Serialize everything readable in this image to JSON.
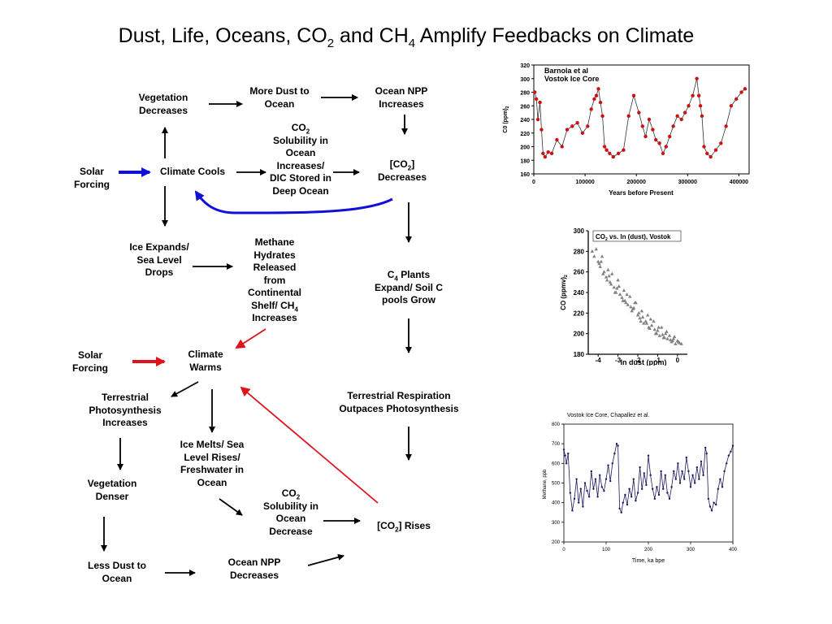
{
  "title": {
    "pre": "Dust, Life, Oceans, CO",
    "sub1": "2",
    "mid": " and CH",
    "sub2": "4",
    "post": " Amplify Feedbacks on Climate"
  },
  "nodes": {
    "veg_decreases": "Vegetation Decreases",
    "more_dust": "More Dust to Ocean",
    "ocean_npp_inc": "Ocean NPP Increases",
    "solar1": "Solar Forcing",
    "climate_cools": "Climate Cools",
    "co2_sol_a": "CO",
    "co2_sol_sub": "2",
    "co2_sol_b": "Solubility in Ocean Increases/ DIC Stored in Deep Ocean",
    "co2dec_a": "[CO",
    "co2dec_sub": "2",
    "co2dec_b": "] Decreases",
    "ice_expands": "Ice Expands/ Sea Level Drops",
    "methane_a": "Methane Hydrates Released from Continental Shelf/ CH",
    "methane_sub": "4",
    "methane_b": "Increases",
    "c4_a": "C",
    "c4_sub": "4",
    "c4_b": "Plants Expand/ Soil C pools Grow",
    "solar2": "Solar Forcing",
    "climate_warms": "Climate Warms",
    "terr_photo": "Terrestrial Photosynthesis Increases",
    "terr_resp": "Terrestrial Respiration Outpaces Photosynthesis",
    "ice_melts": "Ice Melts/ Sea Level Rises/ Freshwater in Ocean",
    "veg_denser": "Vegetation Denser",
    "co2sol2_a": "CO",
    "co2sol2_sub": "2",
    "co2sol2_b": "Solubility in Ocean Decrease",
    "co2rises_a": "[CO",
    "co2rises_sub": "2",
    "co2rises_b": "] Rises",
    "less_dust": "Less Dust to Ocean",
    "ocean_npp_dec": "Ocean NPP Decreases"
  },
  "colors": {
    "blue_arrow": "#1010d8",
    "red_arrow": "#e0121c",
    "chart1_marker": "#cc1111",
    "chart2_marker": "#808080",
    "chart3_line": "#1a1a60"
  },
  "chart_data": [
    {
      "type": "line",
      "legend": [
        "Barnola et al",
        "Vostok Ice Core"
      ],
      "xlabel": "Years before Present",
      "ylabel": "C0 (ppm)",
      "ylabel_sub": "2",
      "xlim": [
        0,
        420000
      ],
      "ylim": [
        160,
        320
      ],
      "xticks": [
        0,
        100000,
        200000,
        300000,
        400000
      ],
      "yticks": [
        160,
        180,
        200,
        220,
        240,
        260,
        280,
        300,
        320
      ],
      "x": [
        2000,
        5000,
        8000,
        12000,
        15000,
        18000,
        22000,
        28000,
        35000,
        45000,
        55000,
        65000,
        75000,
        85000,
        95000,
        105000,
        112000,
        118000,
        122000,
        126000,
        130000,
        134000,
        138000,
        142000,
        148000,
        155000,
        165000,
        175000,
        185000,
        195000,
        205000,
        212000,
        218000,
        225000,
        232000,
        238000,
        245000,
        252000,
        258000,
        265000,
        272000,
        280000,
        288000,
        295000,
        302000,
        310000,
        318000,
        322000,
        325000,
        328000,
        332000,
        338000,
        345000,
        355000,
        365000,
        375000,
        385000,
        395000,
        405000,
        412000
      ],
      "y": [
        280,
        270,
        240,
        265,
        225,
        190,
        185,
        192,
        190,
        210,
        200,
        225,
        230,
        235,
        220,
        230,
        255,
        270,
        275,
        285,
        265,
        245,
        200,
        195,
        190,
        185,
        190,
        195,
        245,
        275,
        250,
        230,
        215,
        240,
        225,
        210,
        205,
        190,
        200,
        215,
        230,
        245,
        240,
        250,
        260,
        275,
        300,
        275,
        260,
        245,
        200,
        190,
        185,
        195,
        205,
        230,
        260,
        270,
        280,
        285
      ]
    },
    {
      "type": "scatter",
      "title": "CO2 vs. ln (dust), Vostok",
      "title_prefix": "CO",
      "title_sub": "2",
      "title_suffix": " vs. ln (dust), Vostok",
      "xlabel": "ln dust (ppm)",
      "ylabel": "CO (ppmv)",
      "ylabel_sub": "2",
      "xlim": [
        -4.5,
        0.5
      ],
      "ylim": [
        180,
        300
      ],
      "xticks": [
        -4,
        -3,
        -2,
        -1,
        0
      ],
      "yticks": [
        180,
        200,
        220,
        240,
        260,
        280,
        300
      ],
      "x": [
        -4.3,
        -4.1,
        -4.0,
        -3.9,
        -3.8,
        -3.7,
        -3.6,
        -3.5,
        -3.4,
        -3.3,
        -3.2,
        -3.1,
        -3.0,
        -2.9,
        -2.8,
        -2.7,
        -2.6,
        -2.5,
        -2.4,
        -2.3,
        -2.2,
        -2.1,
        -2.0,
        -1.9,
        -1.8,
        -1.7,
        -1.6,
        -1.5,
        -1.4,
        -1.3,
        -1.2,
        -1.1,
        -1.0,
        -0.9,
        -0.8,
        -0.7,
        -0.6,
        -0.5,
        -0.4,
        -0.3,
        -0.2,
        -0.1,
        0.0,
        0.1,
        0.2,
        -4.2,
        -3.95,
        -3.75,
        -3.55,
        -3.35,
        -3.15,
        -2.95,
        -2.75,
        -2.55,
        -2.35,
        -2.15,
        -1.95,
        -1.75,
        -1.55,
        -1.35,
        -1.15,
        -0.95,
        -0.75,
        -0.55,
        -0.35,
        -0.15,
        0.05,
        -3.85,
        -3.45,
        -3.05,
        -2.65,
        -2.25,
        -1.85,
        -1.45,
        -1.05,
        -0.65,
        -0.25
      ],
      "y": [
        280,
        282,
        270,
        265,
        275,
        260,
        255,
        262,
        250,
        258,
        245,
        240,
        252,
        238,
        235,
        242,
        230,
        228,
        236,
        222,
        225,
        230,
        218,
        215,
        222,
        210,
        212,
        218,
        205,
        208,
        212,
        200,
        203,
        198,
        206,
        196,
        200,
        195,
        198,
        192,
        195,
        190,
        193,
        191,
        190,
        275,
        268,
        258,
        252,
        248,
        240,
        246,
        232,
        238,
        226,
        230,
        220,
        216,
        210,
        214,
        204,
        206,
        199,
        202,
        194,
        197,
        192,
        270,
        256,
        244,
        232,
        224,
        212,
        206,
        200,
        196,
        193
      ]
    },
    {
      "type": "line",
      "title": "Vostok Ice Core, Chapallez et al.",
      "xlabel": "Time, ka bpe",
      "ylabel": "Methane, ppb",
      "xlim": [
        0,
        400
      ],
      "ylim": [
        200,
        800
      ],
      "xticks": [
        0,
        100,
        200,
        300,
        400
      ],
      "yticks": [
        200,
        300,
        400,
        500,
        600,
        700,
        800
      ],
      "x": [
        0,
        3,
        6,
        10,
        15,
        20,
        25,
        30,
        35,
        40,
        45,
        50,
        55,
        60,
        65,
        70,
        75,
        80,
        85,
        90,
        95,
        100,
        105,
        110,
        115,
        120,
        125,
        128,
        132,
        136,
        140,
        145,
        150,
        155,
        160,
        165,
        170,
        175,
        180,
        185,
        190,
        195,
        200,
        205,
        210,
        215,
        220,
        225,
        230,
        235,
        240,
        245,
        250,
        255,
        260,
        265,
        270,
        275,
        280,
        285,
        290,
        295,
        300,
        305,
        310,
        315,
        320,
        325,
        330,
        335,
        338,
        342,
        346,
        350,
        355,
        360,
        365,
        370,
        375,
        380,
        385,
        390,
        395,
        400
      ],
      "y": [
        670,
        640,
        600,
        650,
        450,
        360,
        420,
        520,
        400,
        470,
        380,
        500,
        460,
        430,
        560,
        470,
        520,
        430,
        540,
        480,
        460,
        520,
        590,
        510,
        600,
        650,
        700,
        690,
        370,
        350,
        400,
        440,
        390,
        470,
        430,
        520,
        410,
        450,
        580,
        470,
        550,
        490,
        640,
        540,
        470,
        420,
        480,
        440,
        560,
        470,
        540,
        450,
        420,
        480,
        560,
        520,
        600,
        500,
        560,
        520,
        630,
        560,
        480,
        540,
        500,
        580,
        520,
        610,
        540,
        680,
        650,
        420,
        380,
        360,
        400,
        390,
        470,
        520,
        480,
        560,
        600,
        640,
        660,
        690
      ]
    }
  ]
}
